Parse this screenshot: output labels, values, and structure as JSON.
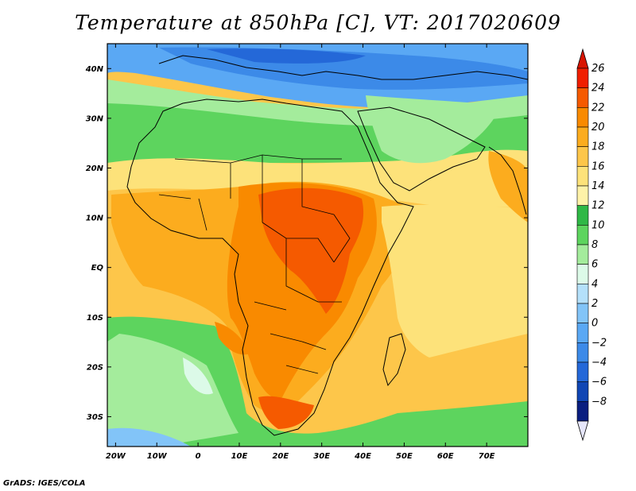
{
  "title": "Temperature at 850hPa [C], VT: 2017020609",
  "credit": "GrADS: IGES/COLA",
  "map": {
    "lat_range": [
      -36,
      45
    ],
    "lon_range": [
      -22,
      80
    ],
    "lat_ticks": [
      {
        "value": 40,
        "label": "40N"
      },
      {
        "value": 30,
        "label": "30N"
      },
      {
        "value": 20,
        "label": "20N"
      },
      {
        "value": 10,
        "label": "10N"
      },
      {
        "value": 0,
        "label": "EQ"
      },
      {
        "value": -10,
        "label": "10S"
      },
      {
        "value": -20,
        "label": "20S"
      },
      {
        "value": -30,
        "label": "30S"
      }
    ],
    "lon_ticks": [
      {
        "value": -20,
        "label": "20W"
      },
      {
        "value": -10,
        "label": "10W"
      },
      {
        "value": 0,
        "label": "0"
      },
      {
        "value": 10,
        "label": "10E"
      },
      {
        "value": 20,
        "label": "20E"
      },
      {
        "value": 30,
        "label": "30E"
      },
      {
        "value": 40,
        "label": "40E"
      },
      {
        "value": 50,
        "label": "50E"
      },
      {
        "value": 60,
        "label": "60E"
      },
      {
        "value": 70,
        "label": "70E"
      }
    ]
  },
  "colorbar": {
    "levels": [
      "26",
      "24",
      "22",
      "20",
      "18",
      "16",
      "14",
      "12",
      "10",
      "8",
      "6",
      "4",
      "2",
      "0",
      "−2",
      "−4",
      "−6",
      "−8"
    ],
    "colors_top_to_bottom": [
      "#f01e00",
      "#f55a00",
      "#f98a00",
      "#fcac1e",
      "#fdc64a",
      "#fde27a",
      "#fef2a8",
      "#2fb846",
      "#5dd45e",
      "#a4ec9c",
      "#dcfae8",
      "#b4e0fa",
      "#82c4f8",
      "#5aa8f4",
      "#3c8ae8",
      "#2468d8",
      "#1046b4",
      "#0a1e80"
    ],
    "top_arrow_color": "#d81400",
    "bottom_arrow_color": "#e6e6fa"
  },
  "regions": [
    {
      "name": "cold-north",
      "color": "#4e9ae8"
    },
    {
      "name": "med-blue",
      "color": "#3a82dc"
    },
    {
      "name": "pale-green",
      "color": "#a4ec9c"
    },
    {
      "name": "green-band",
      "color": "#5dd45e"
    },
    {
      "name": "yellow-sahel",
      "color": "#fde27a"
    },
    {
      "name": "orange-main",
      "color": "#fcac1e"
    },
    {
      "name": "hot-core",
      "color": "#f55a00"
    },
    {
      "name": "ocean-south",
      "color": "#5dd45e"
    }
  ]
}
